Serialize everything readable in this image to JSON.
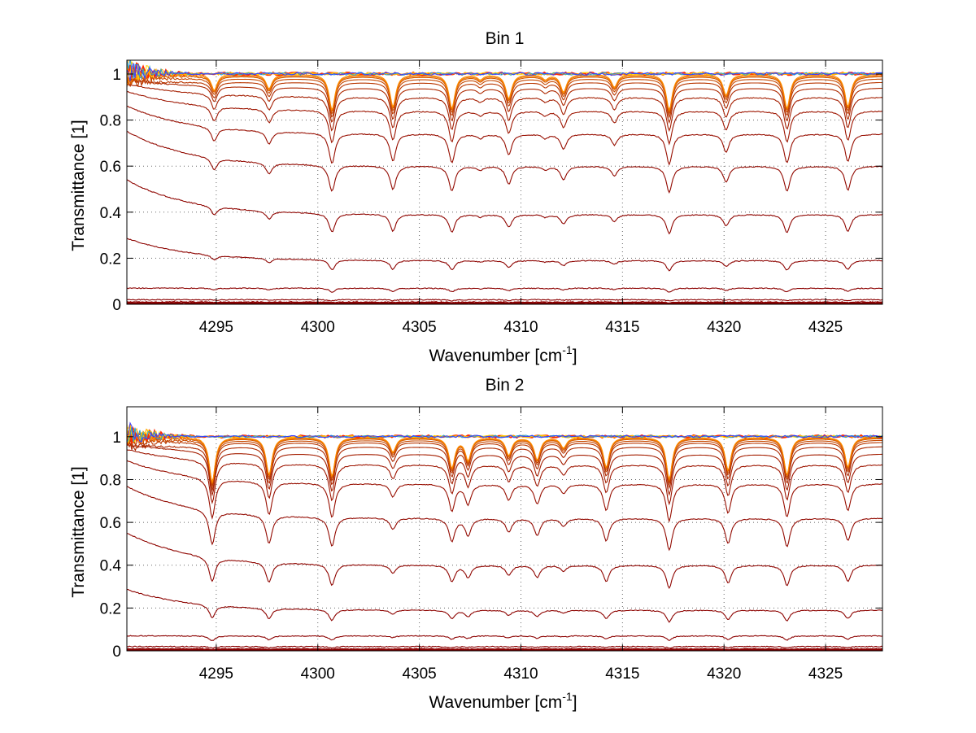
{
  "chart_data": [
    {
      "type": "line",
      "title": "Bin 1",
      "xlabel": "Wavenumber [cm",
      "xlabel_superscript": "-1",
      "xlabel_suffix": "]",
      "ylabel": "Transmittance [1]",
      "xlim": [
        4290.6,
        4327.8
      ],
      "ylim": [
        0,
        1.06
      ],
      "xticks": [
        4295,
        4300,
        4305,
        4310,
        4315,
        4320,
        4325
      ],
      "yticks": [
        0,
        0.2,
        0.4,
        0.6,
        0.8,
        1
      ],
      "ytick_labels": [
        "0",
        "0.2",
        "0.4",
        "0.6",
        "0.8",
        "1"
      ],
      "grid": "dotted",
      "baselines": [
        0.005,
        0.01,
        0.02,
        0.07,
        0.19,
        0.39,
        0.6,
        0.74,
        0.84,
        0.9,
        0.94,
        0.965,
        0.98,
        0.99,
        0.995,
        1.0
      ],
      "absorption_lines": [
        {
          "x": 4294.9,
          "depth": 0.1
        },
        {
          "x": 4297.6,
          "depth": 0.09
        },
        {
          "x": 4300.7,
          "depth": 0.22
        },
        {
          "x": 4303.7,
          "depth": 0.2
        },
        {
          "x": 4306.6,
          "depth": 0.21
        },
        {
          "x": 4308.0,
          "depth": 0.03
        },
        {
          "x": 4309.4,
          "depth": 0.15
        },
        {
          "x": 4311.2,
          "depth": 0.03
        },
        {
          "x": 4312.1,
          "depth": 0.11
        },
        {
          "x": 4314.6,
          "depth": 0.08
        },
        {
          "x": 4317.3,
          "depth": 0.22
        },
        {
          "x": 4320.1,
          "depth": 0.13
        },
        {
          "x": 4323.1,
          "depth": 0.21
        },
        {
          "x": 4326.1,
          "depth": 0.2
        }
      ]
    },
    {
      "type": "line",
      "title": "Bin 2",
      "xlabel": "Wavenumber [cm",
      "xlabel_superscript": "-1",
      "xlabel_suffix": "]",
      "ylabel": "Transmittance [1]",
      "xlim": [
        4290.6,
        4327.8
      ],
      "ylim": [
        0,
        1.14
      ],
      "xticks": [
        4295,
        4300,
        4305,
        4310,
        4315,
        4320,
        4325
      ],
      "yticks": [
        0,
        0.2,
        0.4,
        0.6,
        0.8,
        1
      ],
      "ytick_labels": [
        "0",
        "0.2",
        "0.4",
        "0.6",
        "0.8",
        "1"
      ],
      "grid": "dotted",
      "baselines": [
        0.005,
        0.01,
        0.02,
        0.07,
        0.19,
        0.4,
        0.62,
        0.78,
        0.87,
        0.92,
        0.955,
        0.975,
        0.985,
        0.993,
        0.997,
        1.0
      ],
      "absorption_lines": [
        {
          "x": 4294.8,
          "depth": 0.3
        },
        {
          "x": 4297.6,
          "depth": 0.25
        },
        {
          "x": 4300.7,
          "depth": 0.26
        },
        {
          "x": 4303.7,
          "depth": 0.1
        },
        {
          "x": 4306.6,
          "depth": 0.2
        },
        {
          "x": 4307.4,
          "depth": 0.15
        },
        {
          "x": 4309.4,
          "depth": 0.12
        },
        {
          "x": 4310.8,
          "depth": 0.15
        },
        {
          "x": 4312.1,
          "depth": 0.07
        },
        {
          "x": 4314.2,
          "depth": 0.2
        },
        {
          "x": 4317.3,
          "depth": 0.28
        },
        {
          "x": 4320.2,
          "depth": 0.22
        },
        {
          "x": 4323.1,
          "depth": 0.25
        },
        {
          "x": 4326.1,
          "depth": 0.2
        }
      ]
    }
  ],
  "colors": {
    "series_dark": "#8b0000",
    "series_light": "#ff8c00",
    "series_noise": [
      "#ff2a00",
      "#ffa500",
      "#ffd200",
      "#1fa0d8",
      "#3a3aff"
    ]
  }
}
